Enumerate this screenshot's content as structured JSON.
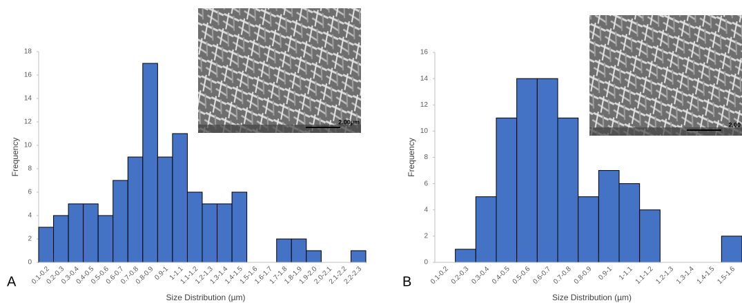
{
  "chart_data": [
    {
      "type": "bar",
      "panel_label": "A",
      "y_label": "Frequency",
      "x_label": "Size Distribution (µm)",
      "categories": [
        "0.1-0.2",
        "0.2-0.3",
        "0.3-0.4",
        "0.4-0.5",
        "0.5-0.6",
        "0.6-0.7",
        "0.7-0.8",
        "0.8-0.9",
        "0.9-1",
        "1-1.1",
        "1.1-1.2",
        "1.2-1.3",
        "1.3-1.4",
        "1.4-1.5",
        "1.5-1.6",
        "1.6-1.7",
        "1.7-1.8",
        "1.8-1.9",
        "1.9-2.0",
        "2.0-2.1",
        "2.1-2.2",
        "2.2-2.3"
      ],
      "values": [
        3,
        4,
        5,
        5,
        4,
        7,
        9,
        17,
        9,
        11,
        6,
        5,
        5,
        6,
        0,
        0,
        2,
        2,
        1,
        0,
        0,
        1
      ],
      "color": "#4472c4",
      "ylim": [
        0,
        18
      ],
      "yticks": [
        0,
        2,
        4,
        6,
        8,
        10,
        12,
        14,
        16,
        18
      ],
      "grid": false,
      "inset_scale_label": "2.00µm"
    },
    {
      "type": "bar",
      "panel_label": "B",
      "y_label": "Frequency",
      "x_label": "Size Distribution (µm)",
      "categories": [
        "0.1-0.2",
        "0.2-0.3",
        "0.3-0.4",
        "0.4-0.5",
        "0.5-0.6",
        "0.6-0.7",
        "0.7-0.8",
        "0.8-0.9",
        "0.9-1",
        "1-1.1",
        "1.1-1.2",
        "1.2-1.3",
        "1.3-1.4",
        "1.4-1.5",
        "1.5-1.6"
      ],
      "values": [
        0,
        1,
        5,
        11,
        14,
        14,
        11,
        5,
        7,
        6,
        4,
        0,
        0,
        0,
        2
      ],
      "color": "#4472c4",
      "ylim": [
        0,
        16
      ],
      "yticks": [
        0,
        2,
        4,
        6,
        8,
        10,
        12,
        14,
        16
      ],
      "grid": false,
      "inset_scale_label": "2.00"
    }
  ]
}
